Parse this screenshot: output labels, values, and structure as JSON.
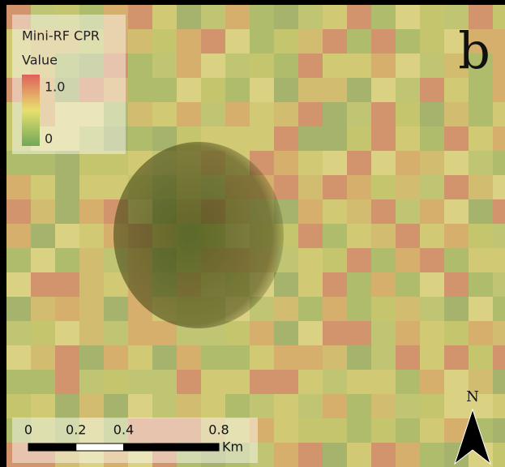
{
  "panel_label": "b",
  "legend": {
    "title": "Mini-RF CPR",
    "subtitle": "Value",
    "ticks": [
      {
        "value": 1,
        "label": "1.0"
      },
      0
    ]
  },
  "scale_bar": {
    "ticks": [
      0,
      0.2,
      0.4,
      0.8
    ],
    "unit": "Km"
  },
  "north_arrow": {
    "label": "N"
  }
}
